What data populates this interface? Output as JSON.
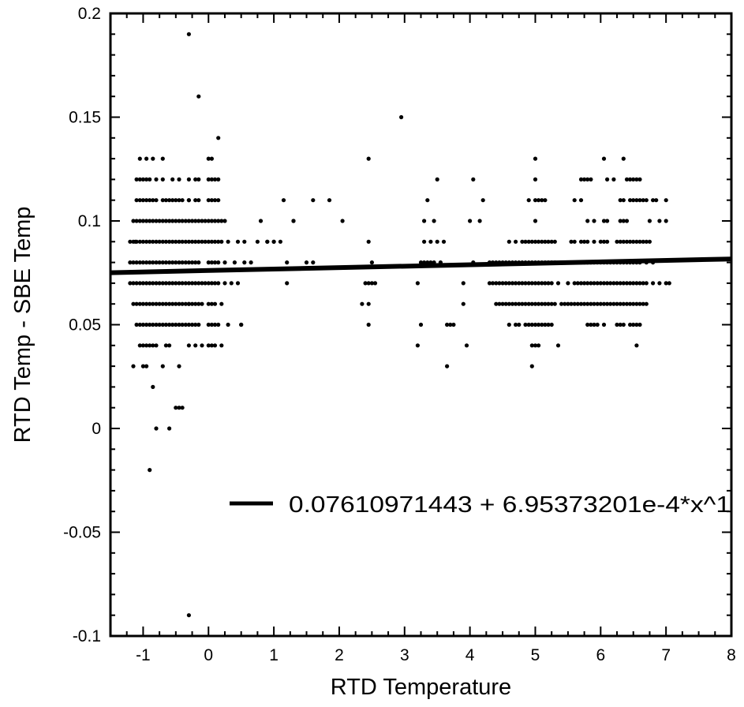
{
  "chart_data": {
    "type": "scatter",
    "title": "",
    "xlabel": "RTD Temperature",
    "ylabel": "RTD Temp - SBE Temp",
    "xlim": [
      -1.5,
      8
    ],
    "ylim": [
      -0.1,
      0.2
    ],
    "x_ticks": [
      -1,
      0,
      1,
      2,
      3,
      4,
      5,
      6,
      7,
      8
    ],
    "x_tick_labels": [
      "-1",
      "0",
      "1",
      "2",
      "3",
      "4",
      "5",
      "6",
      "7",
      "8"
    ],
    "y_ticks": [
      -0.1,
      -0.05,
      0,
      0.05,
      0.1,
      0.15,
      0.2
    ],
    "y_tick_labels": [
      "-0.1",
      "-0.05",
      "0",
      "0.05",
      "0.1",
      "0.15",
      "0.2"
    ],
    "grid": false,
    "legend_position": "lower-right",
    "points": {
      "x": [
        -1.2,
        -1.15,
        -1.12,
        -1.1,
        -1.05,
        -1.0,
        -0.95,
        -0.9,
        -0.85,
        -0.8,
        -0.75,
        -0.7,
        -0.65,
        -0.6,
        -0.55,
        -0.5,
        -0.45,
        -0.4,
        -0.35,
        -0.3,
        -0.25,
        -0.2,
        -0.15,
        -0.1,
        -0.05,
        0.0,
        0.05,
        0.1,
        0.15,
        0.2,
        -1.2,
        -1.15,
        -1.1,
        -1.05,
        -1.0,
        -0.95,
        -0.9,
        -0.85,
        -0.8,
        -0.75,
        -0.7,
        -0.65,
        -0.6,
        -0.55,
        -0.5,
        -0.45,
        -0.4,
        -0.35,
        -0.3,
        -0.25,
        -0.2,
        -0.15,
        0.0,
        0.05,
        0.1,
        0.15,
        -1.2,
        -1.15,
        -1.1,
        -1.05,
        -1.0,
        -0.95,
        -0.9,
        -0.85,
        -0.8,
        -0.75,
        -0.7,
        -0.65,
        -0.6,
        -0.55,
        -0.5,
        -0.45,
        -0.4,
        -0.35,
        -0.3,
        -0.25,
        -0.2,
        -0.15,
        -0.1,
        -0.05,
        0.0,
        0.05,
        0.1,
        0.15,
        0.25,
        0.35,
        -1.15,
        -1.1,
        -1.05,
        -1.0,
        -0.95,
        -0.9,
        -0.85,
        -0.8,
        -0.75,
        -0.7,
        -0.65,
        -0.6,
        -0.55,
        -0.5,
        -0.45,
        -0.4,
        -0.35,
        -0.3,
        -0.25,
        -0.2,
        -0.15,
        -0.1,
        -0.05,
        0.0,
        0.05,
        0.1,
        0.15,
        0.2,
        0.25,
        -1.15,
        -1.1,
        -1.05,
        -1.0,
        -0.95,
        -0.9,
        -0.85,
        -0.8,
        -0.75,
        -0.7,
        -0.65,
        -0.6,
        -0.55,
        -0.5,
        -0.45,
        -0.4,
        -0.35,
        -0.3,
        -0.25,
        -0.2,
        -0.15,
        -0.1,
        0.0,
        0.05,
        0.1,
        0.2,
        -1.1,
        -1.05,
        -1.0,
        -0.95,
        -0.9,
        -0.85,
        -0.8,
        -0.75,
        -0.7,
        -0.65,
        -0.6,
        -0.55,
        -0.5,
        -0.45,
        -0.4,
        -0.35,
        -0.3,
        -0.25,
        -0.2,
        -0.15,
        0.0,
        0.05,
        0.1,
        0.15,
        0.3,
        0.5,
        -1.1,
        -1.05,
        -1.0,
        -0.95,
        -0.9,
        -0.85,
        -0.8,
        -0.7,
        -0.65,
        -0.6,
        -0.55,
        -0.5,
        -0.45,
        -0.4,
        -0.3,
        -0.2,
        -0.15,
        0.0,
        0.05,
        0.1,
        0.15,
        0.45,
        0.55,
        0.75,
        0.9,
        -1.1,
        -1.05,
        -1.0,
        -0.95,
        -0.9,
        -0.8,
        -0.7,
        -0.55,
        -0.45,
        -0.3,
        -0.2,
        -0.15,
        0.0,
        0.05,
        0.1,
        0.15,
        0.4,
        0.65,
        -1.05,
        -1.0,
        -0.95,
        -0.9,
        -0.85,
        -0.8,
        -0.65,
        -0.6,
        -0.3,
        -0.2,
        -0.1,
        0.0,
        0.05,
        0.1,
        0.2,
        -1.05,
        -0.95,
        -0.85,
        -0.7,
        0.0,
        0.05,
        -1.0,
        -0.95,
        -0.7,
        -0.3,
        -0.15,
        0.15,
        -0.3,
        -0.3,
        -1.15,
        -0.85,
        -0.5,
        -0.45,
        -0.4,
        -0.8,
        -0.45,
        -0.6,
        -0.9,
        -0.3,
        0.25,
        0.3,
        0.45,
        0.5,
        0.55,
        0.8,
        0.9,
        1.0,
        1.1,
        1.15,
        1.2,
        1.3,
        1.6,
        1.85,
        2.05,
        1.0,
        1.5,
        1.2,
        1.3,
        1.6,
        2.35,
        2.4,
        2.45,
        2.45,
        2.45,
        2.5,
        2.45,
        2.5,
        2.55,
        2.45,
        2.95,
        3.2,
        3.2,
        3.25,
        3.25,
        3.3,
        3.3,
        3.3,
        3.35,
        3.35,
        3.4,
        3.4,
        3.45,
        3.45,
        3.5,
        3.5,
        3.55,
        3.6,
        3.65,
        3.65,
        3.7,
        3.75,
        3.9,
        3.9,
        3.95,
        4.0,
        4.05,
        4.05,
        4.15,
        4.2,
        4.3,
        4.35,
        4.4,
        4.45,
        4.5,
        4.55,
        4.6,
        4.65,
        4.7,
        4.75,
        4.8,
        4.85,
        4.9,
        4.95,
        5.0,
        5.05,
        5.1,
        5.15,
        5.2,
        5.25,
        5.35,
        5.5,
        5.6,
        5.65,
        5.7,
        5.75,
        5.8,
        5.85,
        5.9,
        5.95,
        6.0,
        6.05,
        6.1,
        6.15,
        6.2,
        6.25,
        6.3,
        6.35,
        6.4,
        6.45,
        6.5,
        6.55,
        6.6,
        6.65,
        6.7,
        6.8,
        6.9,
        7.0,
        7.05,
        4.4,
        4.45,
        4.5,
        4.55,
        4.6,
        4.65,
        4.7,
        4.75,
        4.8,
        4.85,
        4.9,
        4.95,
        5.0,
        5.05,
        5.1,
        5.15,
        5.2,
        5.25,
        5.3,
        5.4,
        5.45,
        5.5,
        5.55,
        5.6,
        5.65,
        5.7,
        5.75,
        5.8,
        5.85,
        5.9,
        5.95,
        6.0,
        6.05,
        6.1,
        6.15,
        6.2,
        6.25,
        6.3,
        6.35,
        6.4,
        6.45,
        6.5,
        6.55,
        6.6,
        6.65,
        6.7,
        4.3,
        4.35,
        4.4,
        4.45,
        4.5,
        4.55,
        4.6,
        4.65,
        4.7,
        4.75,
        4.8,
        4.85,
        4.9,
        4.95,
        5.0,
        5.05,
        5.1,
        5.15,
        5.2,
        5.25,
        5.3,
        5.5,
        5.6,
        5.7,
        5.75,
        5.8,
        5.85,
        5.9,
        5.95,
        6.0,
        6.05,
        6.1,
        6.15,
        6.2,
        6.25,
        6.3,
        6.35,
        6.4,
        6.45,
        6.5,
        6.55,
        6.6,
        6.7,
        6.8,
        4.6,
        4.7,
        4.8,
        4.85,
        4.9,
        4.95,
        5.0,
        5.05,
        5.1,
        5.15,
        5.2,
        5.25,
        5.3,
        5.55,
        5.6,
        5.7,
        5.75,
        5.8,
        5.9,
        6.0,
        6.05,
        6.1,
        6.25,
        6.3,
        6.35,
        6.4,
        6.45,
        6.5,
        6.55,
        6.6,
        6.65,
        6.7,
        6.75,
        4.6,
        4.7,
        4.75,
        4.85,
        4.9,
        4.95,
        5.0,
        5.05,
        5.1,
        5.15,
        5.2,
        5.25,
        5.8,
        5.85,
        5.9,
        5.95,
        6.05,
        6.25,
        6.3,
        6.35,
        6.45,
        6.5,
        6.55,
        6.6,
        4.95,
        5.0,
        5.05,
        5.35,
        6.55,
        4.95,
        5.0,
        5.8,
        5.9,
        6.05,
        6.1,
        6.3,
        6.35,
        6.4,
        6.75,
        6.9,
        7.0,
        4.9,
        5.0,
        5.05,
        5.1,
        5.15,
        5.6,
        5.7,
        6.3,
        6.35,
        6.45,
        6.5,
        6.55,
        6.6,
        6.65,
        6.7,
        6.8,
        6.85,
        7.0,
        5.0,
        5.7,
        5.75,
        5.8,
        5.85,
        6.1,
        6.2,
        6.4,
        6.45,
        6.5,
        6.55,
        6.6,
        5.0,
        6.05,
        6.35
      ],
      "y": [
        0.09,
        0.09,
        0.09,
        0.09,
        0.09,
        0.09,
        0.09,
        0.09,
        0.09,
        0.09,
        0.09,
        0.09,
        0.09,
        0.09,
        0.09,
        0.09,
        0.09,
        0.09,
        0.09,
        0.09,
        0.09,
        0.09,
        0.09,
        0.09,
        0.09,
        0.09,
        0.09,
        0.09,
        0.09,
        0.09,
        0.08,
        0.08,
        0.08,
        0.08,
        0.08,
        0.08,
        0.08,
        0.08,
        0.08,
        0.08,
        0.08,
        0.08,
        0.08,
        0.08,
        0.08,
        0.08,
        0.08,
        0.08,
        0.08,
        0.08,
        0.08,
        0.08,
        0.08,
        0.08,
        0.08,
        0.08,
        0.07,
        0.07,
        0.07,
        0.07,
        0.07,
        0.07,
        0.07,
        0.07,
        0.07,
        0.07,
        0.07,
        0.07,
        0.07,
        0.07,
        0.07,
        0.07,
        0.07,
        0.07,
        0.07,
        0.07,
        0.07,
        0.07,
        0.07,
        0.07,
        0.07,
        0.07,
        0.07,
        0.07,
        0.07,
        0.07,
        0.1,
        0.1,
        0.1,
        0.1,
        0.1,
        0.1,
        0.1,
        0.1,
        0.1,
        0.1,
        0.1,
        0.1,
        0.1,
        0.1,
        0.1,
        0.1,
        0.1,
        0.1,
        0.1,
        0.1,
        0.1,
        0.1,
        0.1,
        0.1,
        0.1,
        0.1,
        0.1,
        0.1,
        0.1,
        0.06,
        0.06,
        0.06,
        0.06,
        0.06,
        0.06,
        0.06,
        0.06,
        0.06,
        0.06,
        0.06,
        0.06,
        0.06,
        0.06,
        0.06,
        0.06,
        0.06,
        0.06,
        0.06,
        0.06,
        0.06,
        0.06,
        0.06,
        0.06,
        0.06,
        0.06,
        0.05,
        0.05,
        0.05,
        0.05,
        0.05,
        0.05,
        0.05,
        0.05,
        0.05,
        0.05,
        0.05,
        0.05,
        0.05,
        0.05,
        0.05,
        0.05,
        0.05,
        0.05,
        0.05,
        0.05,
        0.05,
        0.05,
        0.05,
        0.05,
        0.05,
        0.05,
        0.11,
        0.11,
        0.11,
        0.11,
        0.11,
        0.11,
        0.11,
        0.11,
        0.11,
        0.11,
        0.11,
        0.11,
        0.11,
        0.11,
        0.11,
        0.11,
        0.11,
        0.11,
        0.11,
        0.11,
        0.11,
        0.09,
        0.09,
        0.09,
        0.09,
        0.12,
        0.12,
        0.12,
        0.12,
        0.12,
        0.12,
        0.12,
        0.12,
        0.12,
        0.12,
        0.12,
        0.12,
        0.12,
        0.12,
        0.12,
        0.12,
        0.08,
        0.08,
        0.04,
        0.04,
        0.04,
        0.04,
        0.04,
        0.04,
        0.04,
        0.04,
        0.04,
        0.04,
        0.04,
        0.04,
        0.04,
        0.04,
        0.04,
        0.13,
        0.13,
        0.13,
        0.13,
        0.13,
        0.13,
        0.03,
        0.03,
        0.03,
        0.19,
        0.16,
        0.14,
        -0.09,
        0.11,
        0.03,
        0.02,
        0.01,
        0.01,
        0.01,
        0.0,
        0.03,
        0.0,
        -0.02,
        0.06,
        0.08,
        0.09,
        0.07,
        0.05,
        0.08,
        0.1,
        0.09,
        0.09,
        0.09,
        0.11,
        0.08,
        0.1,
        0.11,
        0.11,
        0.1,
        0.09,
        0.08,
        0.07,
        0.1,
        0.08,
        0.06,
        0.07,
        0.07,
        0.05,
        0.13,
        0.07,
        0.09,
        0.08,
        0.07,
        0.06,
        0.15,
        0.04,
        0.07,
        0.08,
        0.05,
        0.08,
        0.09,
        0.1,
        0.08,
        0.11,
        0.08,
        0.09,
        0.08,
        0.1,
        0.12,
        0.09,
        0.08,
        0.09,
        0.05,
        0.03,
        0.05,
        0.05,
        0.06,
        0.07,
        0.04,
        0.1,
        0.12,
        0.08,
        0.1,
        0.11,
        0.07,
        0.07,
        0.07,
        0.07,
        0.07,
        0.07,
        0.07,
        0.07,
        0.07,
        0.07,
        0.07,
        0.07,
        0.07,
        0.07,
        0.07,
        0.07,
        0.07,
        0.07,
        0.07,
        0.07,
        0.07,
        0.07,
        0.07,
        0.07,
        0.07,
        0.07,
        0.07,
        0.07,
        0.07,
        0.07,
        0.07,
        0.07,
        0.07,
        0.07,
        0.07,
        0.07,
        0.07,
        0.07,
        0.07,
        0.07,
        0.07,
        0.07,
        0.07,
        0.07,
        0.07,
        0.07,
        0.07,
        0.07,
        0.07,
        0.06,
        0.06,
        0.06,
        0.06,
        0.06,
        0.06,
        0.06,
        0.06,
        0.06,
        0.06,
        0.06,
        0.06,
        0.06,
        0.06,
        0.06,
        0.06,
        0.06,
        0.06,
        0.06,
        0.06,
        0.06,
        0.06,
        0.06,
        0.06,
        0.06,
        0.06,
        0.06,
        0.06,
        0.06,
        0.06,
        0.06,
        0.06,
        0.06,
        0.06,
        0.06,
        0.06,
        0.06,
        0.06,
        0.06,
        0.06,
        0.06,
        0.06,
        0.06,
        0.06,
        0.06,
        0.06,
        0.08,
        0.08,
        0.08,
        0.08,
        0.08,
        0.08,
        0.08,
        0.08,
        0.08,
        0.08,
        0.08,
        0.08,
        0.08,
        0.08,
        0.08,
        0.08,
        0.08,
        0.08,
        0.08,
        0.08,
        0.08,
        0.08,
        0.08,
        0.08,
        0.08,
        0.08,
        0.08,
        0.08,
        0.08,
        0.08,
        0.08,
        0.08,
        0.08,
        0.08,
        0.08,
        0.08,
        0.08,
        0.08,
        0.08,
        0.08,
        0.08,
        0.08,
        0.08,
        0.08,
        0.09,
        0.09,
        0.09,
        0.09,
        0.09,
        0.09,
        0.09,
        0.09,
        0.09,
        0.09,
        0.09,
        0.09,
        0.09,
        0.09,
        0.09,
        0.09,
        0.09,
        0.09,
        0.09,
        0.09,
        0.09,
        0.09,
        0.09,
        0.09,
        0.09,
        0.09,
        0.09,
        0.09,
        0.09,
        0.09,
        0.09,
        0.09,
        0.09,
        0.05,
        0.05,
        0.05,
        0.05,
        0.05,
        0.05,
        0.05,
        0.05,
        0.05,
        0.05,
        0.05,
        0.05,
        0.05,
        0.05,
        0.05,
        0.05,
        0.05,
        0.05,
        0.05,
        0.05,
        0.05,
        0.05,
        0.05,
        0.05,
        0.04,
        0.04,
        0.04,
        0.04,
        0.04,
        0.03,
        0.1,
        0.1,
        0.1,
        0.1,
        0.1,
        0.1,
        0.1,
        0.1,
        0.1,
        0.1,
        0.1,
        0.11,
        0.11,
        0.11,
        0.11,
        0.11,
        0.11,
        0.11,
        0.11,
        0.11,
        0.11,
        0.11,
        0.11,
        0.11,
        0.11,
        0.11,
        0.11,
        0.11,
        0.11,
        0.12,
        0.12,
        0.12,
        0.12,
        0.12,
        0.12,
        0.12,
        0.12,
        0.12,
        0.12,
        0.12,
        0.12,
        0.13,
        0.13,
        0.13
      ]
    },
    "fit_line": {
      "intercept": 0.07610971443,
      "slope": 0.000695373201,
      "x_range": [
        -1.5,
        8
      ],
      "legend_label": "0.07610971443 + 6.95373201e-4*x^1"
    }
  }
}
